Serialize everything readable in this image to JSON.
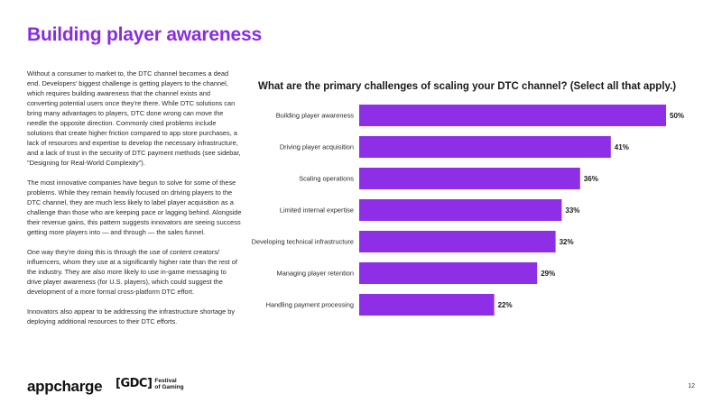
{
  "page": {
    "title": "Building player awareness",
    "paragraphs": [
      "Without a consumer to market to, the DTC channel becomes a dead end. Developers' biggest challenge is getting players to the channel, which requires building awareness that the channel exists and converting potential users once they're there. While DTC solutions can bring many advantages to players, DTC done wrong can move the needle the opposite direction. Commonly cited problems include solutions that create higher friction compared to app store purchases, a lack of resources and expertise to develop the necessary infrastructure, and a lack of trust in the security of DTC payment methods (see sidebar, \"Designing for Real-World Complexity\").",
      "The most innovative companies have begun to solve for some of these problems. While they remain heavily focused on driving players to the DTC channel, they are much less likely to label player acquisition as a challenge than those who are keeping pace or lagging behind. Alongside their revenue gains, this pattern suggests innovators are seeing success getting more players into — and through — the sales funnel.",
      "One way they're doing this is through the use of content creators/ influencers, whom they use at a significantly higher rate than the rest of the industry. They are also more likely to use in-game messaging to drive player awareness (for U.S. players), which could suggest the development of a more formal cross-platform DTC effort.",
      "Innovators also appear to be addressing the infrastructure shortage by deploying additional resources to their DTC efforts."
    ],
    "page_number": "12"
  },
  "footer": {
    "brand_logo": "appcharge",
    "partner_mark": "GDC",
    "partner_line1": "Festival",
    "partner_line2": "of Gaming"
  },
  "colors": {
    "accent": "#8a2be2",
    "bar": "#8e2ee6",
    "text": "#1a1a1a"
  },
  "chart_data": {
    "type": "bar",
    "orientation": "horizontal",
    "title": "What are the primary challenges of scaling your DTC channel? (Select all that apply.)",
    "categories": [
      "Building player awareness",
      "Driving player acquisition",
      "Scaling operations",
      "Limited internal expertise",
      "Developing technical infrastructure",
      "Managing player retention",
      "Handling payment processing"
    ],
    "values": [
      50,
      41,
      36,
      33,
      32,
      29,
      22
    ],
    "value_labels": [
      "50%",
      "41%",
      "36%",
      "33%",
      "32%",
      "29%",
      "22%"
    ],
    "xlim": [
      0,
      50
    ],
    "grid": false,
    "legend": "none"
  }
}
